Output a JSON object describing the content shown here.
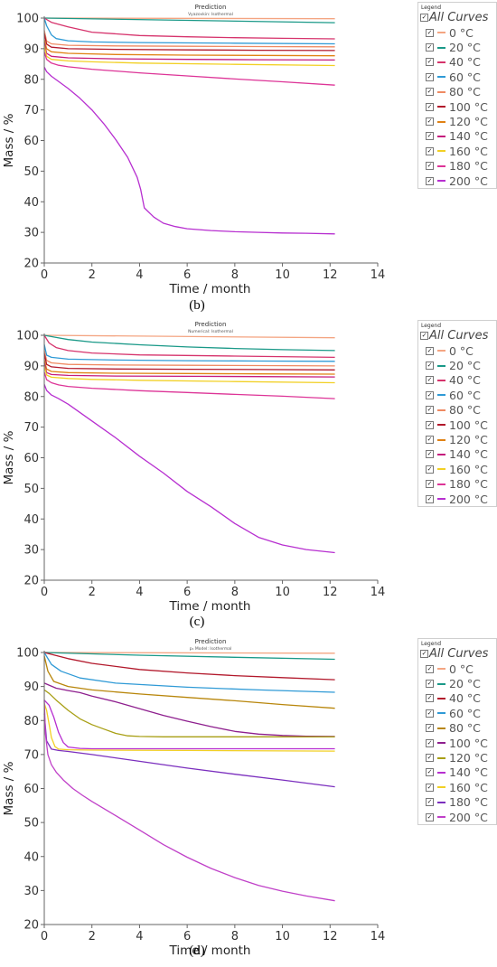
{
  "chart_data": [
    {
      "type": "line",
      "panel_label": "(b)",
      "title": "Prediction",
      "subtitle": "Vyazovkin: Isothermal",
      "xlabel": "Time / month",
      "ylabel": "Mass / %",
      "xlim": [
        0,
        14
      ],
      "ylim": [
        20,
        100
      ],
      "xticks": [
        0,
        2,
        4,
        6,
        8,
        10,
        12,
        14
      ],
      "yticks": [
        20,
        30,
        40,
        50,
        60,
        70,
        80,
        90,
        100
      ],
      "grid": false,
      "legend_position": "right",
      "legend_title": "Legend",
      "legend_all": "All Curves",
      "series": [
        {
          "name": "0 °C",
          "color": "#f4a582",
          "x": [
            0,
            12.2
          ],
          "y": [
            100,
            99.8
          ]
        },
        {
          "name": "20 °C",
          "color": "#1a9988",
          "x": [
            0,
            12.2
          ],
          "y": [
            100,
            98.5
          ]
        },
        {
          "name": "40 °C",
          "color": "#d6336c",
          "x": [
            0,
            0.3,
            1,
            2,
            4,
            6,
            8,
            10,
            12.2
          ],
          "y": [
            100,
            98.6,
            97.1,
            95.4,
            94.3,
            93.9,
            93.6,
            93.4,
            93.2
          ]
        },
        {
          "name": "60 °C",
          "color": "#2f9ad6",
          "x": [
            0,
            0.1,
            0.3,
            0.5,
            1,
            2,
            4,
            8,
            12.2
          ],
          "y": [
            100,
            97.5,
            94.5,
            93.3,
            92.6,
            92.2,
            92.0,
            91.8,
            91.6
          ]
        },
        {
          "name": "80 °C",
          "color": "#ef8a62",
          "x": [
            0,
            0.1,
            0.3,
            1,
            3,
            6,
            9,
            12.2
          ],
          "y": [
            96,
            92.5,
            91.6,
            91.1,
            90.9,
            90.8,
            90.7,
            90.6
          ]
        },
        {
          "name": "100 °C",
          "color": "#b2182b",
          "x": [
            0,
            0.1,
            0.3,
            1,
            3,
            6,
            9,
            12.2
          ],
          "y": [
            95,
            91.5,
            90.5,
            90.0,
            89.8,
            89.6,
            89.5,
            89.4
          ]
        },
        {
          "name": "120 °C",
          "color": "#e08214",
          "x": [
            0,
            0.1,
            0.3,
            1,
            3,
            6,
            9,
            12.2
          ],
          "y": [
            93,
            90.0,
            89.0,
            88.5,
            88.1,
            87.9,
            87.8,
            87.7
          ]
        },
        {
          "name": "140 °C",
          "color": "#c51b7d",
          "x": [
            0,
            0.1,
            0.3,
            1,
            3,
            6,
            9,
            12.2
          ],
          "y": [
            92,
            88.5,
            87.5,
            87.0,
            86.7,
            86.5,
            86.4,
            86.3
          ]
        },
        {
          "name": "160 °C",
          "color": "#f2d024",
          "x": [
            0,
            0.1,
            0.3,
            1,
            2,
            4,
            8,
            12.2
          ],
          "y": [
            91,
            87.5,
            86.5,
            86.0,
            85.7,
            85.3,
            84.9,
            84.5
          ]
        },
        {
          "name": "180 °C",
          "color": "#dd3497",
          "x": [
            0,
            0.1,
            0.3,
            0.6,
            1,
            2,
            4,
            6,
            8,
            10,
            12.2
          ],
          "y": [
            89,
            86.5,
            85.3,
            84.6,
            84.1,
            83.3,
            82.1,
            81.1,
            80.1,
            79.2,
            78.1
          ]
        },
        {
          "name": "200 °C",
          "color": "#b72fd0",
          "x": [
            0,
            0.1,
            0.3,
            0.6,
            1,
            1.5,
            2,
            2.5,
            3,
            3.5,
            3.9,
            4.05,
            4.2,
            4.6,
            5.0,
            5.5,
            6,
            7,
            8,
            9,
            10,
            11,
            12.2
          ],
          "y": [
            84,
            82.5,
            81.0,
            79.3,
            77.0,
            73.8,
            70.0,
            65.5,
            60.3,
            54.5,
            48.0,
            44.0,
            38.0,
            35.0,
            33.0,
            31.9,
            31.2,
            30.6,
            30.2,
            30.0,
            29.8,
            29.7,
            29.5
          ]
        }
      ]
    },
    {
      "type": "line",
      "panel_label": "(c)",
      "title": "Prediction",
      "subtitle": "Numerical: Isothermal",
      "xlabel": "Time / month",
      "ylabel": "Mass / %",
      "xlim": [
        0,
        14
      ],
      "ylim": [
        20,
        100
      ],
      "xticks": [
        0,
        2,
        4,
        6,
        8,
        10,
        12,
        14
      ],
      "yticks": [
        20,
        30,
        40,
        50,
        60,
        70,
        80,
        90,
        100
      ],
      "grid": false,
      "legend_position": "right",
      "legend_title": "Legend",
      "legend_all": "All Curves",
      "series": [
        {
          "name": "0 °C",
          "color": "#f4a582",
          "x": [
            0,
            12.2
          ],
          "y": [
            100,
            99.2
          ]
        },
        {
          "name": "20 °C",
          "color": "#1a9988",
          "x": [
            0,
            0.5,
            1,
            2,
            4,
            6,
            8,
            10,
            12.2
          ],
          "y": [
            100,
            99.3,
            98.6,
            97.8,
            96.9,
            96.2,
            95.7,
            95.3,
            95.0
          ]
        },
        {
          "name": "40 °C",
          "color": "#d6336c",
          "x": [
            0,
            0.2,
            0.5,
            1,
            2,
            4,
            8,
            12.2
          ],
          "y": [
            100,
            97.5,
            96.0,
            95.0,
            94.2,
            93.6,
            93.2,
            92.8
          ]
        },
        {
          "name": "60 °C",
          "color": "#2f9ad6",
          "x": [
            0,
            0.1,
            0.3,
            1,
            3,
            6,
            9,
            12.2
          ],
          "y": [
            97,
            93.5,
            92.8,
            92.2,
            91.9,
            91.7,
            91.6,
            91.5
          ]
        },
        {
          "name": "80 °C",
          "color": "#ef8a62",
          "x": [
            0,
            0.1,
            0.3,
            1,
            3,
            6,
            9,
            12.2
          ],
          "y": [
            95,
            91.8,
            91.0,
            90.5,
            90.3,
            90.2,
            90.1,
            90.0
          ]
        },
        {
          "name": "100 °C",
          "color": "#b2182b",
          "x": [
            0,
            0.1,
            0.3,
            1,
            3,
            6,
            9,
            12.2
          ],
          "y": [
            94,
            90.5,
            89.7,
            89.2,
            89.0,
            88.9,
            88.8,
            88.7
          ]
        },
        {
          "name": "120 °C",
          "color": "#e08214",
          "x": [
            0,
            0.1,
            0.3,
            1,
            3,
            6,
            9,
            12.2
          ],
          "y": [
            92,
            89.0,
            88.2,
            87.8,
            87.6,
            87.5,
            87.4,
            87.3
          ]
        },
        {
          "name": "140 °C",
          "color": "#c51b7d",
          "x": [
            0,
            0.1,
            0.3,
            1,
            3,
            6,
            9,
            12.2
          ],
          "y": [
            91,
            87.8,
            87.2,
            86.9,
            86.7,
            86.6,
            86.5,
            86.4
          ]
        },
        {
          "name": "160 °C",
          "color": "#f2d024",
          "x": [
            0,
            0.1,
            0.3,
            1,
            2,
            4,
            8,
            12.2
          ],
          "y": [
            90,
            87.0,
            86.3,
            85.9,
            85.6,
            85.3,
            84.9,
            84.5
          ]
        },
        {
          "name": "180 °C",
          "color": "#dd3497",
          "x": [
            0,
            0.1,
            0.3,
            0.6,
            1,
            2,
            4,
            6,
            8,
            10,
            12.2
          ],
          "y": [
            88,
            85.5,
            84.5,
            83.8,
            83.3,
            82.7,
            81.9,
            81.3,
            80.7,
            80.1,
            79.3
          ]
        },
        {
          "name": "200 °C",
          "color": "#b72fd0",
          "x": [
            0,
            0.1,
            0.3,
            0.6,
            1,
            2,
            3,
            4,
            5,
            6,
            7,
            8,
            9,
            10,
            11,
            12.2
          ],
          "y": [
            84,
            82.0,
            80.5,
            79.3,
            77.5,
            72.0,
            66.5,
            60.5,
            55.0,
            49.0,
            44.0,
            38.5,
            34.0,
            31.5,
            30.0,
            29.0
          ]
        }
      ]
    },
    {
      "type": "line",
      "panel_label": "(d)",
      "title": "Prediction",
      "subtitle": "p₁ Model: Isothermal",
      "xlabel": "Time / month",
      "ylabel": "Mass / %",
      "xlim": [
        0,
        14
      ],
      "ylim": [
        20,
        100
      ],
      "xticks": [
        0,
        2,
        4,
        6,
        8,
        10,
        12,
        14
      ],
      "yticks": [
        20,
        30,
        40,
        50,
        60,
        70,
        80,
        90,
        100
      ],
      "grid": false,
      "legend_position": "right",
      "legend_title": "Legend",
      "legend_all": "All Curves",
      "series": [
        {
          "name": "0 °C",
          "color": "#f4a582",
          "x": [
            0,
            12.2
          ],
          "y": [
            100,
            99.8
          ]
        },
        {
          "name": "20 °C",
          "color": "#1a9988",
          "x": [
            0,
            4,
            8,
            12.2
          ],
          "y": [
            100,
            99.2,
            98.6,
            98.0
          ]
        },
        {
          "name": "40 °C",
          "color": "#b2182b",
          "x": [
            0,
            1,
            2,
            4,
            6,
            8,
            10,
            12.2
          ],
          "y": [
            100,
            98.2,
            96.8,
            95.0,
            94.0,
            93.2,
            92.6,
            92.0
          ]
        },
        {
          "name": "60 °C",
          "color": "#2f9ad6",
          "x": [
            0,
            0.3,
            0.7,
            1.5,
            3,
            6,
            9,
            12.2
          ],
          "y": [
            100,
            96.5,
            94.5,
            92.5,
            91.0,
            89.8,
            89.0,
            88.3
          ]
        },
        {
          "name": "80 °C",
          "color": "#b8860b",
          "x": [
            0,
            0.15,
            0.4,
            1,
            2,
            4,
            6,
            8,
            10,
            12.2
          ],
          "y": [
            99,
            94.5,
            91.5,
            90.0,
            89.0,
            87.8,
            86.8,
            85.8,
            84.7,
            83.6
          ]
        },
        {
          "name": "100 °C",
          "color": "#8e1f8e",
          "x": [
            0,
            0.5,
            1,
            1.5,
            2,
            3,
            4,
            5,
            6,
            7,
            8,
            9,
            10,
            11,
            12.2
          ],
          "y": [
            91,
            89.5,
            88.8,
            88.2,
            87.2,
            85.5,
            83.5,
            81.5,
            79.8,
            78.2,
            76.8,
            76.0,
            75.6,
            75.4,
            75.3
          ]
        },
        {
          "name": "120 °C",
          "color": "#a89f14",
          "x": [
            0,
            0.2,
            0.5,
            1,
            1.5,
            2,
            2.5,
            3,
            3.5,
            4,
            5,
            6,
            8,
            10,
            12.2
          ],
          "y": [
            89,
            88.0,
            86.0,
            83.0,
            80.5,
            78.8,
            77.5,
            76.2,
            75.5,
            75.3,
            75.2,
            75.2,
            75.2,
            75.2,
            75.2
          ]
        },
        {
          "name": "140 °C",
          "color": "#b72fd0",
          "x": [
            0,
            0.2,
            0.4,
            0.6,
            0.8,
            1.0,
            1.5,
            2,
            4,
            8,
            12.2
          ],
          "y": [
            86,
            84.5,
            81.0,
            76.5,
            73.5,
            72.2,
            71.8,
            71.7,
            71.7,
            71.7,
            71.7
          ]
        },
        {
          "name": "160 °C",
          "color": "#f2d024",
          "x": [
            0,
            0.1,
            0.2,
            0.3,
            0.45,
            0.6,
            1,
            2,
            6,
            12.2
          ],
          "y": [
            85,
            83.0,
            79.0,
            75.0,
            72.3,
            71.6,
            71.4,
            71.3,
            71.2,
            71.0
          ]
        },
        {
          "name": "180 °C",
          "color": "#7b2fbe",
          "x": [
            0,
            0.1,
            0.3,
            0.6,
            1,
            2,
            4,
            6,
            8,
            10,
            12.2
          ],
          "y": [
            82,
            74.0,
            71.6,
            71.2,
            70.9,
            70.0,
            68.0,
            66.0,
            64.2,
            62.5,
            60.5
          ]
        },
        {
          "name": "200 °C",
          "color": "#c040c8",
          "x": [
            0,
            0.05,
            0.15,
            0.3,
            0.5,
            0.8,
            1.2,
            1.6,
            2,
            3,
            4,
            5,
            6,
            7,
            8,
            9,
            10,
            11,
            12.2
          ],
          "y": [
            86,
            76.0,
            70.0,
            67.0,
            64.8,
            62.5,
            60.0,
            58.0,
            56.2,
            52.0,
            47.8,
            43.5,
            39.8,
            36.5,
            33.8,
            31.5,
            29.8,
            28.4,
            27.0
          ]
        }
      ]
    }
  ]
}
